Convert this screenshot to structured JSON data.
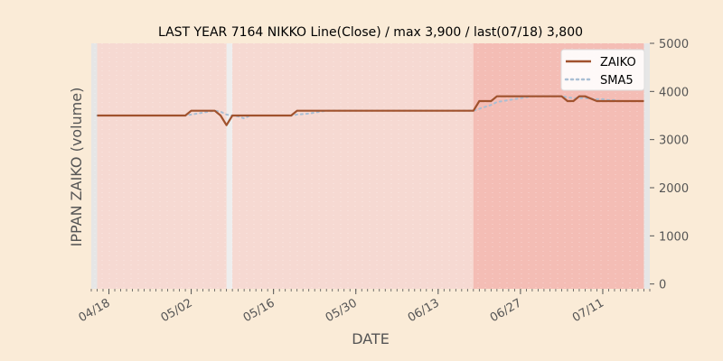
{
  "chart_data": {
    "type": "line",
    "title": "LAST YEAR 7164 NIKKO Line(Close) / max 3,900 / last(07/18) 3,800",
    "xlabel": "DATE",
    "ylabel": "IPPAN ZAIKO (volume)",
    "ylim": [
      -100,
      5000
    ],
    "y_axis_side": "right",
    "yticks": [
      0,
      1000,
      2000,
      3000,
      4000,
      5000
    ],
    "ytick_labels": [
      "0",
      "1000",
      "2000",
      "3000",
      "4000",
      "5000"
    ],
    "xlim": [
      "2023-04-15",
      "2023-07-19"
    ],
    "xticks": [
      "2023-04-18",
      "2023-05-02",
      "2023-05-16",
      "2023-05-30",
      "2023-06-13",
      "2023-06-27",
      "2023-07-11"
    ],
    "xtick_labels": [
      "04/18",
      "05/02",
      "05/16",
      "05/30",
      "06/13",
      "06/27",
      "07/11"
    ],
    "legend": {
      "position": "upper right",
      "entries": [
        "ZAIKO",
        "SMA5"
      ]
    },
    "background_bands": [
      {
        "from": "2023-04-15",
        "to": "2023-04-16",
        "color": "#e6e6e6"
      },
      {
        "from": "2023-04-16",
        "to": "2023-05-08",
        "color": "#f6d9d2"
      },
      {
        "from": "2023-05-08",
        "to": "2023-05-09",
        "color": "#eeeeee"
      },
      {
        "from": "2023-05-09",
        "to": "2023-06-19",
        "color": "#f6d9d2"
      },
      {
        "from": "2023-06-19",
        "to": "2023-07-18",
        "color": "#f4bdb5"
      },
      {
        "from": "2023-07-18",
        "to": "2023-07-19",
        "color": "#e6e6e6"
      }
    ],
    "x": [
      "2023-04-16",
      "2023-04-17",
      "2023-04-18",
      "2023-04-19",
      "2023-04-20",
      "2023-04-21",
      "2023-04-24",
      "2023-04-25",
      "2023-04-26",
      "2023-04-27",
      "2023-04-28",
      "2023-05-01",
      "2023-05-02",
      "2023-05-03",
      "2023-05-04",
      "2023-05-05",
      "2023-05-06",
      "2023-05-07",
      "2023-05-08",
      "2023-05-09",
      "2023-05-10",
      "2023-05-11",
      "2023-05-12",
      "2023-05-15",
      "2023-05-16",
      "2023-05-17",
      "2023-05-18",
      "2023-05-19",
      "2023-05-20",
      "2023-05-22",
      "2023-05-23",
      "2023-05-24",
      "2023-05-25",
      "2023-05-26",
      "2023-05-29",
      "2023-05-30",
      "2023-05-31",
      "2023-06-01",
      "2023-06-02",
      "2023-06-05",
      "2023-06-06",
      "2023-06-07",
      "2023-06-08",
      "2023-06-09",
      "2023-06-12",
      "2023-06-13",
      "2023-06-14",
      "2023-06-15",
      "2023-06-16",
      "2023-06-19",
      "2023-06-20",
      "2023-06-21",
      "2023-06-22",
      "2023-06-23",
      "2023-06-26",
      "2023-06-27",
      "2023-06-28",
      "2023-06-29",
      "2023-06-30",
      "2023-07-03",
      "2023-07-04",
      "2023-07-05",
      "2023-07-06",
      "2023-07-07",
      "2023-07-08",
      "2023-07-10",
      "2023-07-11",
      "2023-07-12",
      "2023-07-13",
      "2023-07-14",
      "2023-07-17",
      "2023-07-18"
    ],
    "series": [
      {
        "name": "ZAIKO",
        "color": "#a0522d",
        "style": "solid",
        "values": [
          3500,
          3500,
          3500,
          3500,
          3500,
          3500,
          3500,
          3500,
          3500,
          3500,
          3500,
          3500,
          3600,
          3600,
          3600,
          3600,
          3600,
          3500,
          3300,
          3500,
          3500,
          3500,
          3500,
          3500,
          3500,
          3500,
          3500,
          3500,
          3600,
          3600,
          3600,
          3600,
          3600,
          3600,
          3600,
          3600,
          3600,
          3600,
          3600,
          3600,
          3600,
          3600,
          3600,
          3600,
          3600,
          3600,
          3600,
          3600,
          3600,
          3600,
          3800,
          3800,
          3800,
          3900,
          3900,
          3900,
          3900,
          3900,
          3900,
          3900,
          3900,
          3800,
          3800,
          3900,
          3900,
          3800,
          3800,
          3800,
          3800,
          3800,
          3800,
          3800
        ]
      },
      {
        "name": "SMA5",
        "color": "#a9bfd4",
        "style": "dotted",
        "values": [
          3500,
          3500,
          3500,
          3500,
          3500,
          3500,
          3500,
          3500,
          3500,
          3500,
          3500,
          3500,
          3520,
          3540,
          3560,
          3580,
          3600,
          3580,
          3520,
          3500,
          3480,
          3440,
          3500,
          3500,
          3500,
          3500,
          3500,
          3500,
          3520,
          3540,
          3560,
          3580,
          3600,
          3600,
          3600,
          3600,
          3600,
          3600,
          3600,
          3600,
          3600,
          3600,
          3600,
          3600,
          3600,
          3600,
          3600,
          3600,
          3600,
          3600,
          3640,
          3680,
          3720,
          3780,
          3840,
          3860,
          3880,
          3900,
          3900,
          3900,
          3900,
          3880,
          3860,
          3860,
          3860,
          3840,
          3840,
          3820,
          3820,
          3800,
          3800,
          3800
        ]
      }
    ]
  }
}
